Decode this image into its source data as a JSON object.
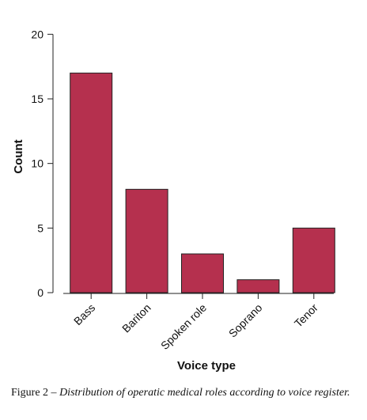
{
  "chart_data": {
    "type": "bar",
    "categories": [
      "Bass",
      "Bariton",
      "Spoken role",
      "Soprano",
      "Tenor"
    ],
    "values": [
      17,
      8,
      3,
      1,
      5
    ],
    "xlabel": "Voice type",
    "ylabel": "Count",
    "ylim": [
      0,
      21
    ],
    "yticks": [
      0,
      5,
      10,
      15,
      20
    ],
    "bar_color": "#b5304e",
    "grid": false
  },
  "caption": {
    "label": "Figure 2 –",
    "text": "Distribution of operatic medical roles according to voice register."
  }
}
